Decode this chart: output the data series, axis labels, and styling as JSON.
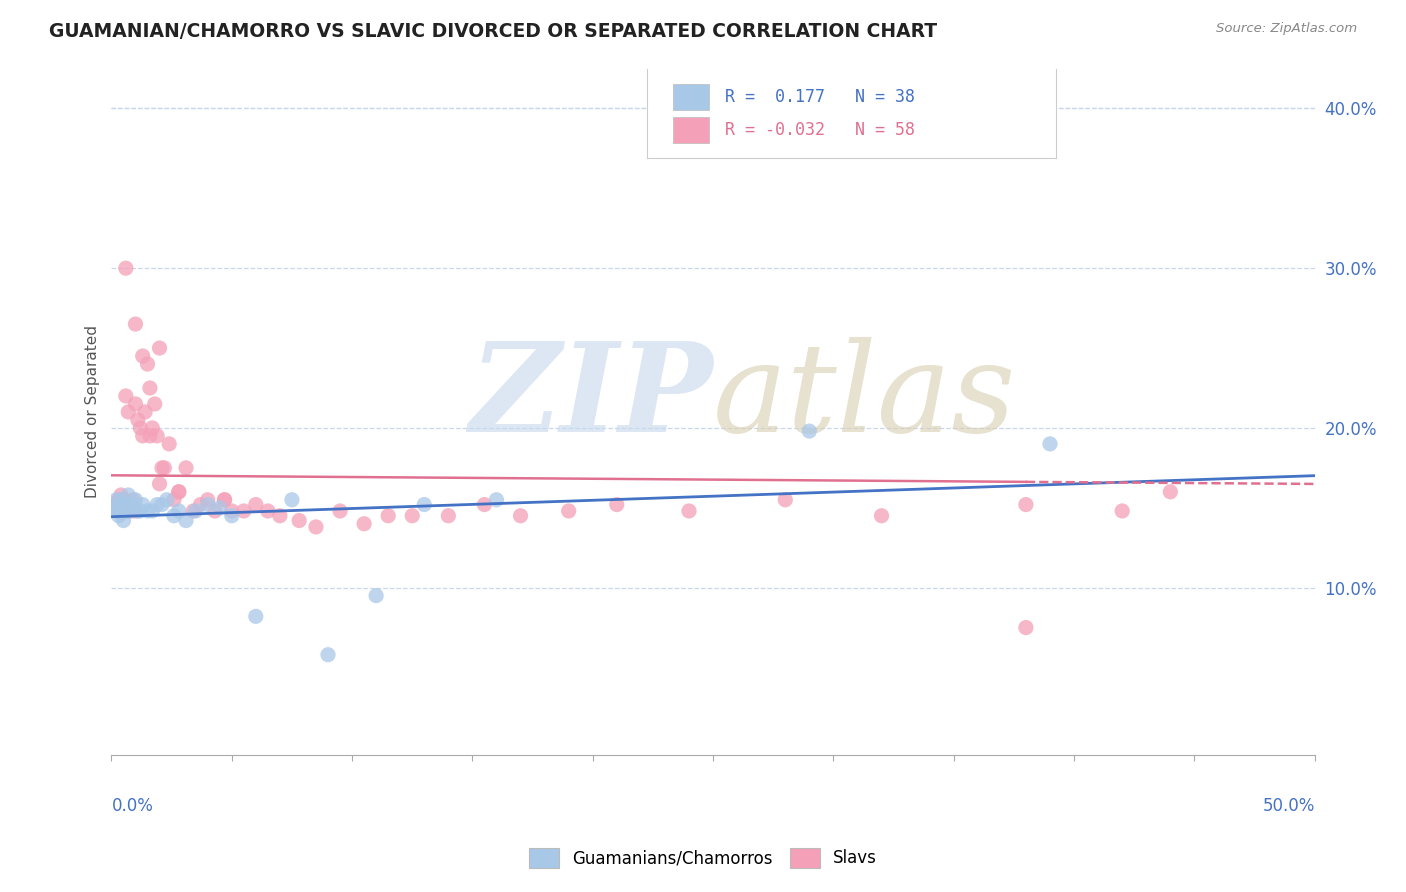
{
  "title": "GUAMANIAN/CHAMORRO VS SLAVIC DIVORCED OR SEPARATED CORRELATION CHART",
  "source_text": "Source: ZipAtlas.com",
  "ylabel": "Divorced or Separated",
  "xlim": [
    0.0,
    0.5
  ],
  "ylim": [
    -0.005,
    0.425
  ],
  "yticks": [
    0.1,
    0.2,
    0.3,
    0.4
  ],
  "ytick_labels": [
    "10.0%",
    "20.0%",
    "30.0%",
    "40.0%"
  ],
  "r_guam": 0.177,
  "r_slav": -0.032,
  "n_guam": 38,
  "n_slav": 58,
  "color_guam": "#a8c8e8",
  "color_slav": "#f4a0b8",
  "line_color_guam": "#4472c4",
  "line_color_slav": "#e07090",
  "background_color": "#ffffff",
  "grid_color": "#c8d8ec",
  "guam_x": [
    0.001,
    0.002,
    0.002,
    0.003,
    0.003,
    0.004,
    0.004,
    0.005,
    0.005,
    0.006,
    0.007,
    0.007,
    0.008,
    0.009,
    0.01,
    0.011,
    0.012,
    0.013,
    0.015,
    0.017,
    0.019,
    0.021,
    0.023,
    0.026,
    0.028,
    0.031,
    0.035,
    0.04,
    0.045,
    0.05,
    0.06,
    0.075,
    0.09,
    0.11,
    0.13,
    0.16,
    0.29,
    0.39
  ],
  "guam_y": [
    0.15,
    0.148,
    0.155,
    0.145,
    0.152,
    0.148,
    0.155,
    0.142,
    0.152,
    0.148,
    0.148,
    0.158,
    0.152,
    0.152,
    0.155,
    0.148,
    0.148,
    0.152,
    0.148,
    0.148,
    0.152,
    0.152,
    0.155,
    0.145,
    0.148,
    0.142,
    0.148,
    0.152,
    0.15,
    0.145,
    0.082,
    0.155,
    0.058,
    0.095,
    0.152,
    0.155,
    0.198,
    0.19
  ],
  "slav_x": [
    0.001,
    0.002,
    0.003,
    0.003,
    0.004,
    0.004,
    0.005,
    0.005,
    0.006,
    0.007,
    0.007,
    0.008,
    0.009,
    0.01,
    0.01,
    0.011,
    0.012,
    0.013,
    0.014,
    0.015,
    0.016,
    0.017,
    0.018,
    0.019,
    0.02,
    0.021,
    0.022,
    0.024,
    0.026,
    0.028,
    0.031,
    0.034,
    0.037,
    0.04,
    0.043,
    0.047,
    0.05,
    0.055,
    0.06,
    0.065,
    0.07,
    0.078,
    0.085,
    0.095,
    0.105,
    0.115,
    0.125,
    0.14,
    0.155,
    0.17,
    0.19,
    0.21,
    0.24,
    0.28,
    0.32,
    0.38,
    0.42,
    0.44
  ],
  "slav_y": [
    0.152,
    0.148,
    0.148,
    0.155,
    0.148,
    0.158,
    0.148,
    0.155,
    0.22,
    0.148,
    0.21,
    0.148,
    0.155,
    0.215,
    0.148,
    0.205,
    0.2,
    0.195,
    0.21,
    0.24,
    0.195,
    0.2,
    0.215,
    0.195,
    0.165,
    0.175,
    0.175,
    0.19,
    0.155,
    0.16,
    0.175,
    0.148,
    0.152,
    0.155,
    0.148,
    0.155,
    0.148,
    0.148,
    0.152,
    0.148,
    0.145,
    0.142,
    0.138,
    0.148,
    0.14,
    0.145,
    0.145,
    0.145,
    0.152,
    0.145,
    0.148,
    0.152,
    0.148,
    0.155,
    0.145,
    0.152,
    0.148,
    0.16
  ],
  "slav_extra_x": [
    0.006,
    0.01,
    0.013,
    0.016,
    0.02,
    0.028,
    0.047,
    0.38
  ],
  "slav_extra_y": [
    0.3,
    0.265,
    0.245,
    0.225,
    0.25,
    0.16,
    0.155,
    0.075
  ]
}
